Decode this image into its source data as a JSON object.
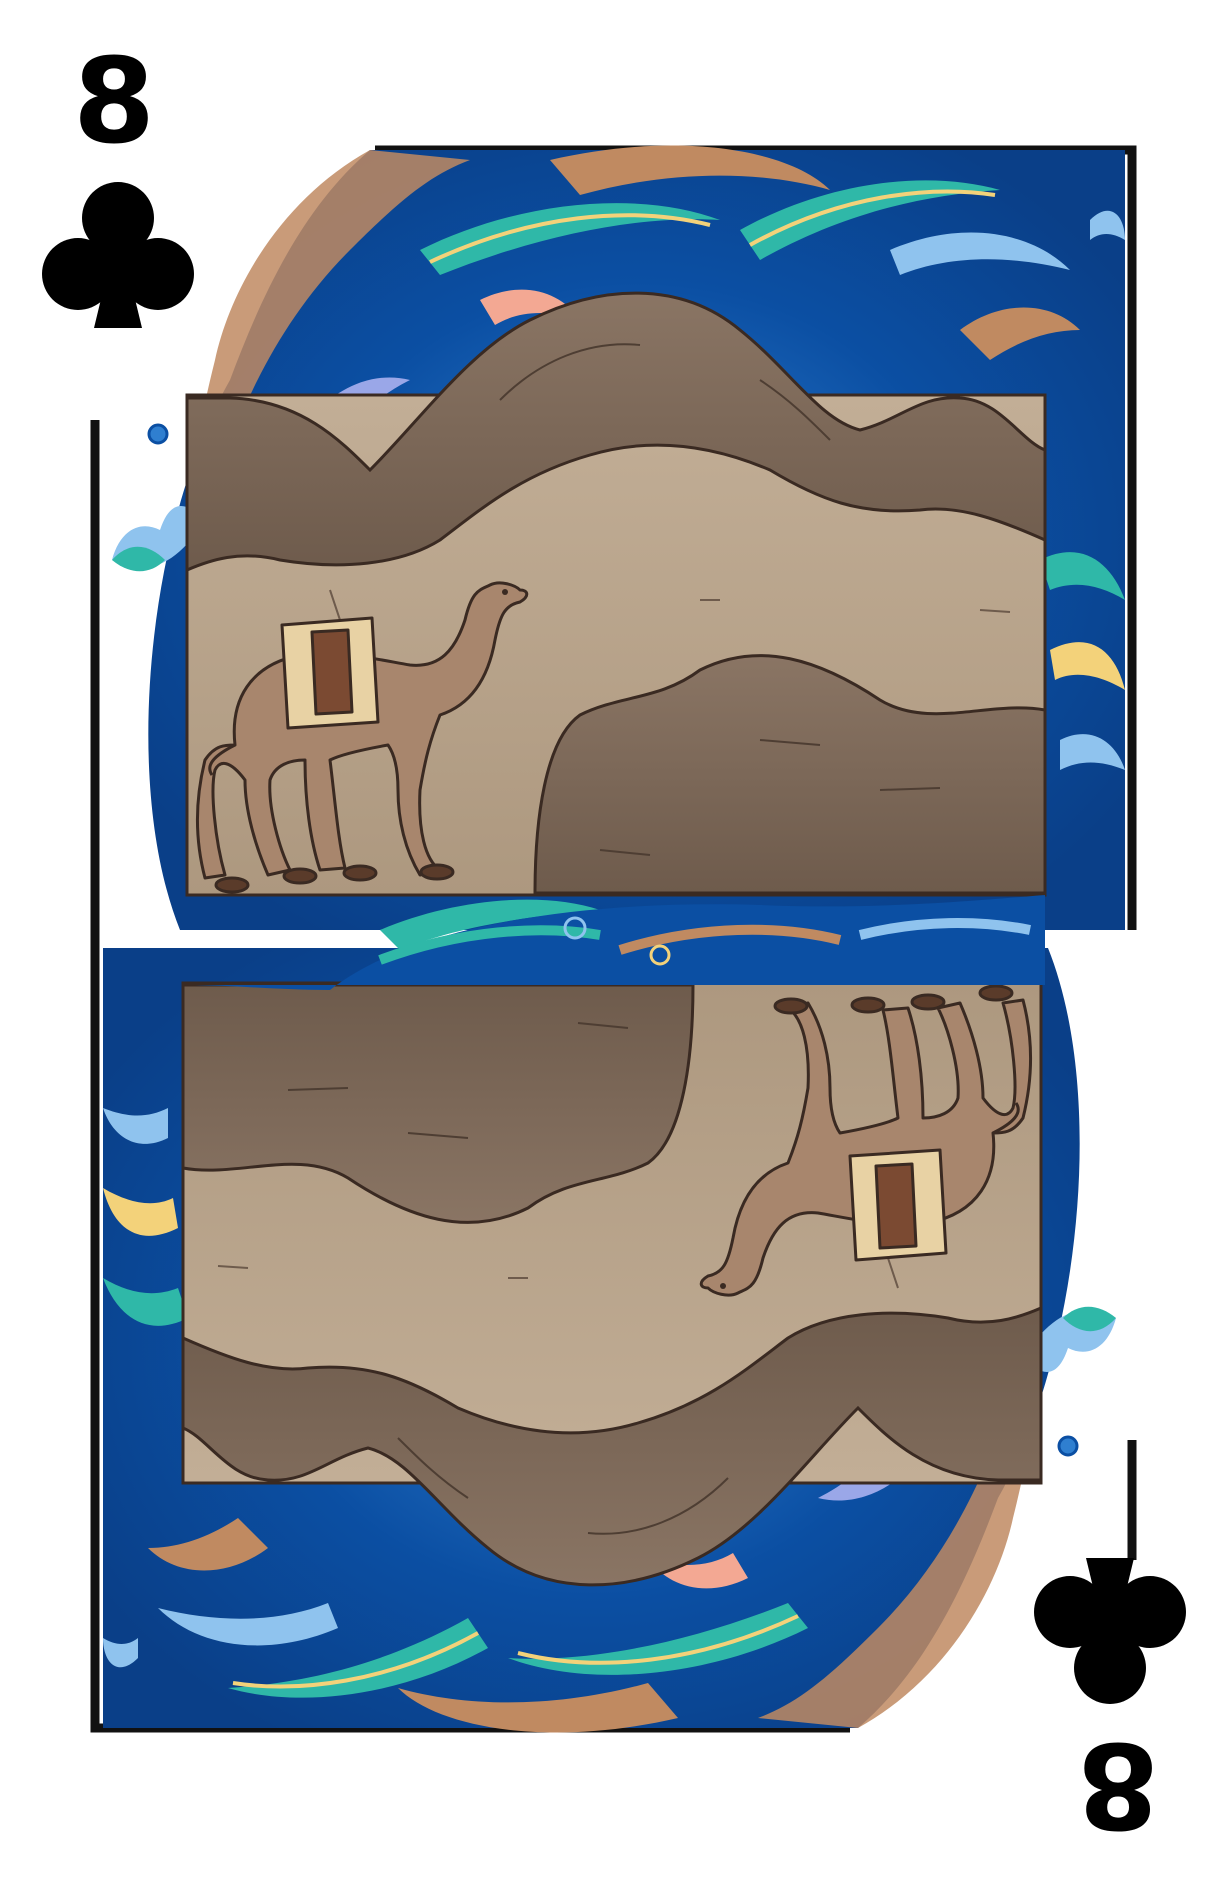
{
  "card": {
    "rank": "8",
    "suit": "clubs",
    "suit_icon": "club-icon",
    "colors": {
      "ink": "#000000",
      "frame": "#111111",
      "swirl_dark": "#0b4fa3",
      "swirl_mid": "#2f7fd0",
      "swirl_light": "#8fc3ee",
      "swirl_lilac": "#9aa7e8",
      "swirl_copper": "#c08a61",
      "swirl_teal": "#2fb8a8",
      "swirl_gold": "#f3d27a",
      "dune_dark": "#7a6656",
      "dune_light": "#b9a58d",
      "camel": "#a8866d",
      "saddle": "#e8d2a4",
      "saddle_inner": "#7b4a32",
      "outline": "#3a2a22"
    },
    "top_scene": {
      "subject": "camel-walking-through-desert-dunes"
    },
    "bottom_scene": {
      "subject": "camel-walking-through-desert-dunes-mirrored"
    }
  }
}
